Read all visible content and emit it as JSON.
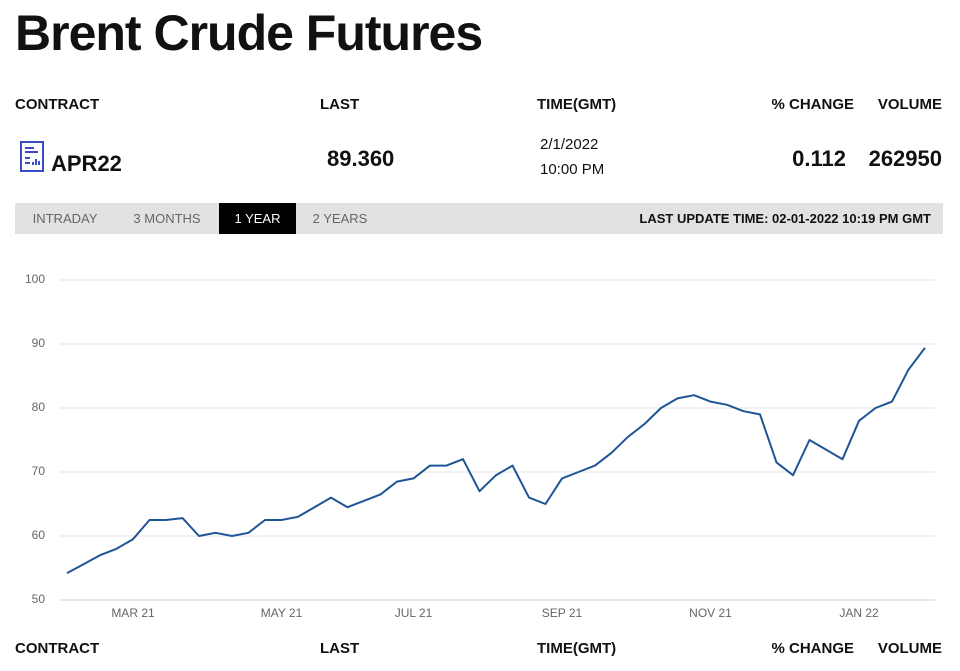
{
  "header": {
    "title": "Brent Crude Futures"
  },
  "table": {
    "columns": [
      "CONTRACT",
      "LAST",
      "TIME(GMT)",
      "% CHANGE",
      "VOLUME"
    ],
    "row": {
      "contract": "APR22",
      "last": "89.360",
      "date": "2/1/2022",
      "time": "10:00 PM",
      "change": "0.112",
      "volume": "262950"
    }
  },
  "tabs": [
    "INTRADAY",
    "3 MONTHS",
    "1 YEAR",
    "2 YEARS"
  ],
  "last_update": "LAST UPDATE TIME: 02-01-2022 10:19 PM GMT",
  "chart_data": {
    "type": "line",
    "categories": [
      null,
      null,
      null,
      null,
      "MAR 21",
      null,
      null,
      null,
      null,
      null,
      null,
      null,
      null,
      "MAY 21",
      null,
      null,
      null,
      null,
      null,
      null,
      null,
      "JUL 21",
      null,
      null,
      null,
      null,
      null,
      null,
      null,
      null,
      "SEP 21",
      null,
      null,
      null,
      null,
      null,
      null,
      null,
      null,
      "NOV 21",
      null,
      null,
      null,
      null,
      null,
      null,
      null,
      null,
      "JAN 22",
      null,
      null,
      null,
      null
    ],
    "values": [
      54.2,
      55.6,
      57.0,
      58.0,
      59.5,
      62.5,
      62.5,
      62.8,
      60.0,
      60.5,
      60.0,
      60.5,
      62.5,
      62.5,
      63.0,
      64.5,
      66.0,
      64.5,
      65.5,
      66.5,
      68.5,
      69.0,
      71.0,
      71.0,
      72.0,
      67.0,
      69.5,
      71.0,
      66.0,
      65.0,
      69.0,
      70.0,
      71.0,
      73.0,
      75.5,
      77.5,
      80.0,
      81.5,
      82.0,
      81.0,
      80.5,
      79.5,
      79.0,
      71.5,
      69.5,
      75.0,
      73.5,
      72.0,
      78.0,
      80.0,
      81.0,
      86.0,
      89.4
    ],
    "color": "#1f5596",
    "ylim": [
      50,
      100
    ],
    "yticks": [
      50,
      60,
      70,
      80,
      90,
      100
    ],
    "grid": true
  }
}
